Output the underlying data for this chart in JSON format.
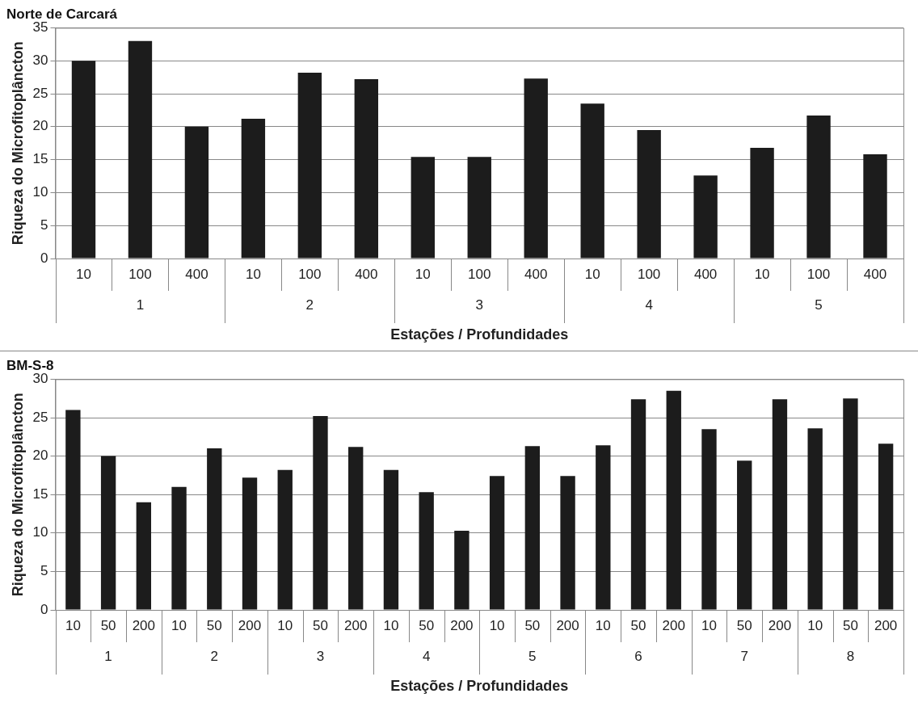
{
  "chart_data": [
    {
      "type": "bar",
      "title": "Norte de Carcará",
      "xlabel": "Estações / Profundidades",
      "ylabel": "Riqueza do Microfitoplâncton",
      "categories": [
        "10",
        "100",
        "400",
        "10",
        "100",
        "400",
        "10",
        "100",
        "400",
        "10",
        "100",
        "400",
        "10",
        "100",
        "400"
      ],
      "values": [
        30,
        33,
        20,
        21.2,
        28.2,
        27.2,
        15.4,
        15.4,
        27.3,
        23.5,
        19.5,
        12.6,
        16.8,
        21.7,
        15.8
      ],
      "color": "#1c1c1c",
      "ylim": [
        0,
        35
      ],
      "yticks": [
        0,
        5,
        10,
        15,
        20,
        25,
        30,
        35
      ],
      "grid": "y",
      "legend": false,
      "annotations": [
        "1",
        "2",
        "3",
        "4",
        "5"
      ]
    },
    {
      "type": "bar",
      "title": "BM-S-8",
      "xlabel": "Estações / Profundidades",
      "ylabel": "Riqueza do Microfitoplâncton",
      "categories": [
        "10",
        "50",
        "200",
        "10",
        "50",
        "200",
        "10",
        "50",
        "200",
        "10",
        "50",
        "200",
        "10",
        "50",
        "200",
        "10",
        "50",
        "200",
        "10",
        "50",
        "200",
        "10",
        "50",
        "200"
      ],
      "values": [
        26,
        20,
        14,
        16,
        21,
        17.2,
        18.2,
        25.2,
        21.2,
        18.2,
        15.3,
        10.3,
        17.4,
        21.3,
        17.4,
        21.4,
        27.4,
        28.5,
        23.5,
        19.4,
        27.4,
        23.6,
        27.5,
        21.6
      ],
      "color": "#1c1c1c",
      "ylim": [
        0,
        30
      ],
      "yticks": [
        0,
        5,
        10,
        15,
        20,
        25,
        30
      ],
      "grid": "y",
      "legend": false,
      "annotations": [
        "1",
        "2",
        "3",
        "4",
        "5",
        "6",
        "7",
        "8"
      ]
    }
  ]
}
